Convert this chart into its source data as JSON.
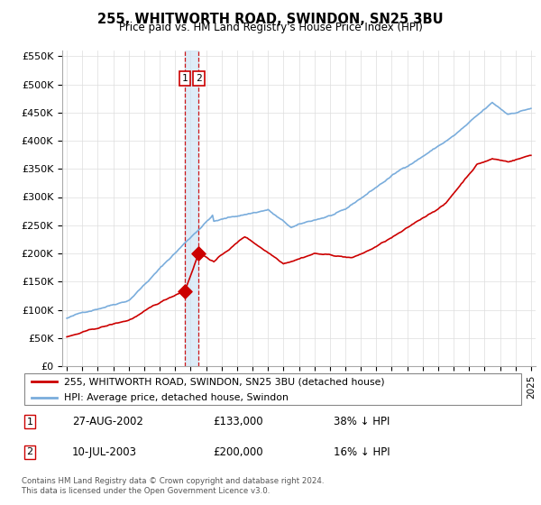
{
  "title": "255, WHITWORTH ROAD, SWINDON, SN25 3BU",
  "subtitle": "Price paid vs. HM Land Registry's House Price Index (HPI)",
  "footer": "Contains HM Land Registry data © Crown copyright and database right 2024.\nThis data is licensed under the Open Government Licence v3.0.",
  "legend_entry1": "255, WHITWORTH ROAD, SWINDON, SN25 3BU (detached house)",
  "legend_entry2": "HPI: Average price, detached house, Swindon",
  "transaction1_date": "27-AUG-2002",
  "transaction1_price": "£133,000",
  "transaction1_hpi": "38% ↓ HPI",
  "transaction2_date": "10-JUL-2003",
  "transaction2_price": "£200,000",
  "transaction2_hpi": "16% ↓ HPI",
  "property_color": "#cc0000",
  "hpi_color": "#7aaddc",
  "shade_color": "#d0e4f5",
  "ylim": [
    0,
    560000
  ],
  "yticks": [
    0,
    50000,
    100000,
    150000,
    200000,
    250000,
    300000,
    350000,
    400000,
    450000,
    500000,
    550000
  ],
  "ytick_labels": [
    "£0",
    "£50K",
    "£100K",
    "£150K",
    "£200K",
    "£250K",
    "£300K",
    "£350K",
    "£400K",
    "£450K",
    "£500K",
    "£550K"
  ],
  "transaction1_x": 2002.644,
  "transaction2_x": 2003.53,
  "transaction1_y": 133000,
  "transaction2_y": 200000,
  "xmin": 1994.7,
  "xmax": 2025.3
}
